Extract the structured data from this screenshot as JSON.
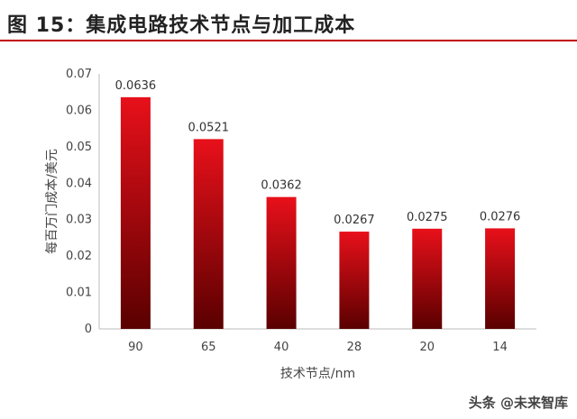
{
  "figure": {
    "title": "图 15：集成电路技术节点与加工成本"
  },
  "watermark": "头条 @未来智库",
  "colors": {
    "bar_top": "#e8101a",
    "bar_bottom": "#5a0000",
    "rule": "#c00000"
  },
  "chart_data": {
    "type": "bar",
    "title": "",
    "xlabel": "技术节点/nm",
    "ylabel": "每百万门成本/美元",
    "categories": [
      "90",
      "65",
      "40",
      "28",
      "20",
      "14"
    ],
    "values": [
      0.0636,
      0.0521,
      0.0362,
      0.0267,
      0.0275,
      0.0276
    ],
    "data_labels": [
      "0.0636",
      "0.0521",
      "0.0362",
      "0.0267",
      "0.0275",
      "0.0276"
    ],
    "ylim": [
      0,
      0.07
    ],
    "yticks": [
      "0",
      "0.01",
      "0.02",
      "0.03",
      "0.04",
      "0.05",
      "0.06",
      "0.07"
    ],
    "grid": false,
    "legend": "none"
  }
}
